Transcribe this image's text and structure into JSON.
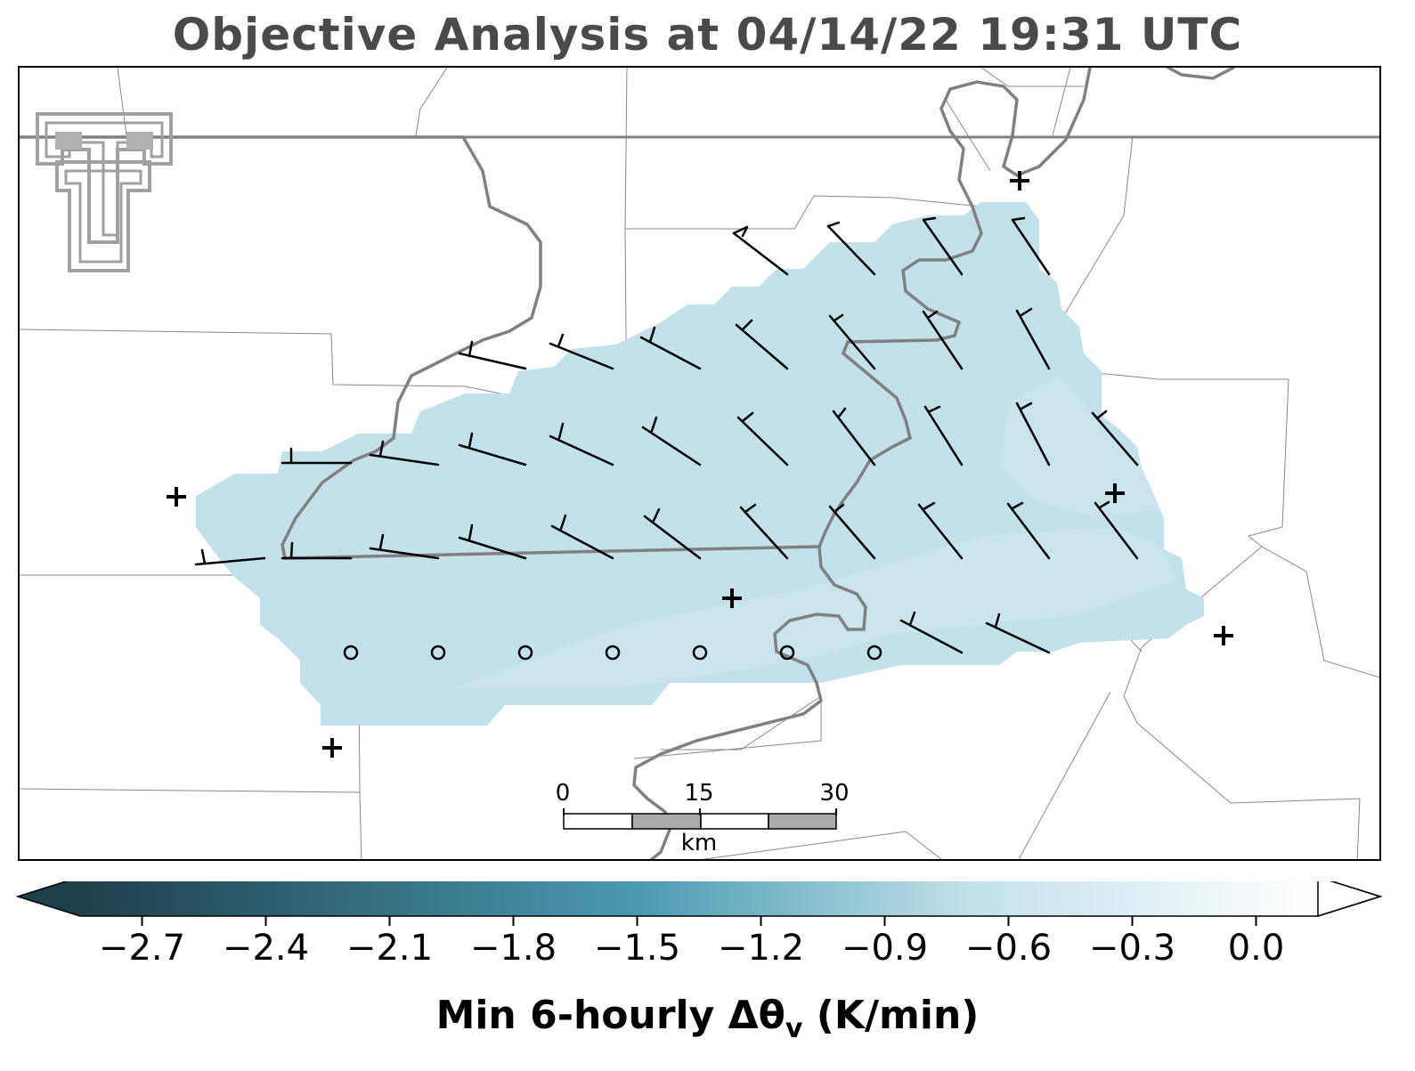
{
  "title": "Objective Analysis at 04/14/22 19:31 UTC",
  "colorbar": {
    "label_main": "Min 6-hourly Δθ",
    "label_sub": "v",
    "label_unit": " (K/min)",
    "min": -2.85,
    "max": 0.15,
    "ticks": [
      "−2.7",
      "−2.4",
      "−2.1",
      "−1.8",
      "−1.5",
      "−1.2",
      "−0.9",
      "−0.6",
      "−0.3",
      "0.0"
    ],
    "colors": {
      "dark": "#1e3f4c",
      "mid": "#4a9ab2",
      "light": "#c2e1ea",
      "white": "#ffffff"
    }
  },
  "scalebar": {
    "labels": [
      "0",
      "15",
      "30"
    ],
    "unit": "km"
  },
  "analysis_field": {
    "value": -0.7,
    "color": "#c2e1ea"
  },
  "colors": {
    "boundary": "#808080",
    "county": "#888888",
    "barb": "#000000"
  }
}
